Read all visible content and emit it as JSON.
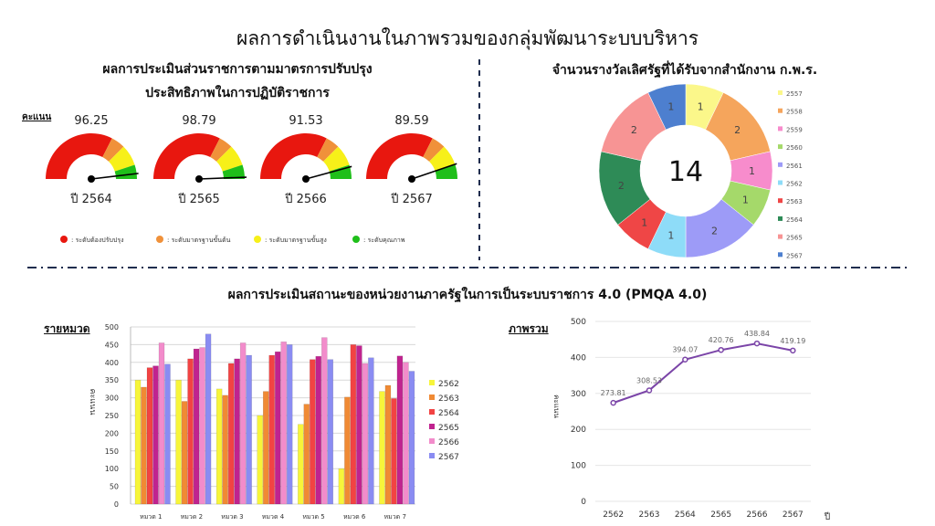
{
  "title": "ผลการดำเนินงานในภาพรวมของกลุ่มพัฒนาระบบบริหาร",
  "chart_data": [
    {
      "type": "gauge",
      "title_line1": "ผลการประเมินส่วนราชการตามมาตรการปรับปรุง",
      "title_line2": "ประสิทธิภาพในการปฏิบัติราชการ",
      "ylabel": "คะแนน",
      "range": [
        0,
        100
      ],
      "gauges": [
        {
          "value": 96.25,
          "label": "ปี 2564"
        },
        {
          "value": 98.79,
          "label": "ปี 2565"
        },
        {
          "value": 91.53,
          "label": "ปี 2566"
        },
        {
          "value": 89.59,
          "label": "ปี 2567"
        }
      ],
      "bands": [
        {
          "from": 0,
          "to": 65,
          "color": "#e8170f",
          "label": ": ระดับต้องปรับปรุง"
        },
        {
          "from": 65,
          "to": 75,
          "color": "#f0913a",
          "label": ": ระดับมาตรฐานขั้นต้น"
        },
        {
          "from": 75,
          "to": 90,
          "color": "#f7f019",
          "label": ": ระดับมาตรฐานขั้นสูง"
        },
        {
          "from": 90,
          "to": 100,
          "color": "#1fbf1a",
          "label": ": ระดับคุณภาพ"
        }
      ]
    },
    {
      "type": "pie",
      "title": "จำนวนรางวัลเลิศรัฐที่ได้รับจากสำนักงาน ก.พ.ร.",
      "center_label": "14",
      "legend": "right",
      "slices": [
        {
          "label": "2557",
          "value": 1,
          "color": "#fbf78a"
        },
        {
          "label": "2558",
          "value": 2,
          "color": "#f5a55c"
        },
        {
          "label": "2559",
          "value": 1,
          "color": "#f78ccc"
        },
        {
          "label": "2560",
          "value": 1,
          "color": "#a5d96a"
        },
        {
          "label": "2561",
          "value": 2,
          "color": "#9d9bf7"
        },
        {
          "label": "2562",
          "value": 1,
          "color": "#8edcf8"
        },
        {
          "label": "2563",
          "value": 1,
          "color": "#ef4646"
        },
        {
          "label": "2564",
          "value": 2,
          "color": "#2e8b57"
        },
        {
          "label": "2565",
          "value": 2,
          "color": "#f79494"
        },
        {
          "label": "2567",
          "value": 1,
          "color": "#4d7fcf"
        }
      ]
    },
    {
      "type": "bar",
      "section_title": "ผลการประเมินสถานะของหน่วยงานภาครัฐในการเป็นระบบราชการ 4.0 (PMQA 4.0)",
      "title": "รายหมวด",
      "ylabel": "คะแนน",
      "ylim": [
        0,
        500
      ],
      "yticks": [
        0,
        50,
        100,
        150,
        200,
        250,
        300,
        350,
        400,
        450,
        500
      ],
      "grid": true,
      "legend": "right",
      "categories": [
        "หมวด 1",
        "หมวด 2",
        "หมวด 3",
        "หมวด 4",
        "หมวด 5",
        "หมวด 6",
        "หมวด 7"
      ],
      "series": [
        {
          "name": "2562",
          "color": "#f7f53a",
          "values": [
            350,
            350,
            325,
            250,
            225,
            100,
            318
          ]
        },
        {
          "name": "2563",
          "color": "#f08a34",
          "values": [
            330,
            290,
            307,
            318,
            282,
            302,
            335
          ]
        },
        {
          "name": "2564",
          "color": "#f24343",
          "values": [
            385,
            410,
            397,
            420,
            408,
            450,
            298
          ]
        },
        {
          "name": "2565",
          "color": "#c0238f",
          "values": [
            390,
            438,
            410,
            430,
            417,
            447,
            418
          ]
        },
        {
          "name": "2566",
          "color": "#f28ccb",
          "values": [
            455,
            442,
            455,
            458,
            470,
            397,
            400
          ]
        },
        {
          "name": "2567",
          "color": "#8a8cf2",
          "values": [
            395,
            480,
            420,
            450,
            408,
            413,
            375
          ]
        }
      ]
    },
    {
      "type": "line",
      "title": "ภาพรวม",
      "ylabel": "คะแนน",
      "xlabel": "ปี",
      "ylim": [
        0,
        500
      ],
      "yticks": [
        0,
        100,
        200,
        300,
        400,
        500
      ],
      "grid": true,
      "color": "#7b45a8",
      "x": [
        "2562",
        "2563",
        "2564",
        "2565",
        "2566",
        "2567"
      ],
      "y": [
        273.81,
        308.53,
        394.07,
        420.76,
        438.84,
        419.19
      ],
      "labels": [
        "273.81",
        "308.53",
        "394.07",
        "420.76",
        "438.84",
        "419.19"
      ]
    }
  ]
}
